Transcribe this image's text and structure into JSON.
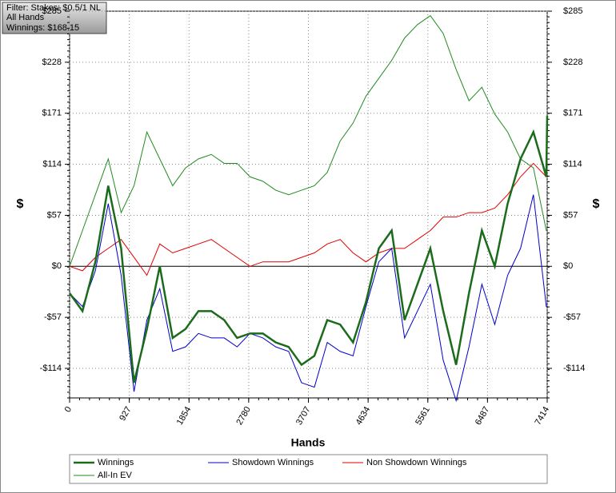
{
  "chart_data": {
    "type": "line",
    "info": [
      "Filter: Stakes: $0.5/1 NL",
      "All Hands",
      "Winnings: $168.15"
    ],
    "x_label": "Hands",
    "y_label": "$",
    "xlim": [
      0,
      7414
    ],
    "ylim": [
      -147,
      285
    ],
    "xticks": [
      0,
      927,
      1854,
      2780,
      3707,
      4634,
      5561,
      6487,
      7414
    ],
    "yticks": [
      {
        "value": -114,
        "label": "-$114"
      },
      {
        "value": -57,
        "label": "-$57"
      },
      {
        "value": 0,
        "label": "$0"
      },
      {
        "value": 57,
        "label": "$57"
      },
      {
        "value": 114,
        "label": "$114"
      },
      {
        "value": 171,
        "label": "$171"
      },
      {
        "value": 228,
        "label": "$228"
      },
      {
        "value": 285,
        "label": "$285"
      }
    ],
    "grid": true,
    "x": [
      0,
      200,
      400,
      600,
      800,
      1000,
      1200,
      1400,
      1600,
      1800,
      2000,
      2200,
      2400,
      2600,
      2800,
      3000,
      3200,
      3400,
      3600,
      3800,
      4000,
      4200,
      4400,
      4600,
      4800,
      5000,
      5200,
      5400,
      5600,
      5800,
      6000,
      6200,
      6400,
      6600,
      6800,
      7000,
      7200,
      7400,
      7414
    ],
    "series": [
      {
        "name": "Winnings",
        "color": "#1a6b1a",
        "width": 2.5,
        "values": [
          -30,
          -50,
          5,
          90,
          20,
          -130,
          -70,
          0,
          -80,
          -70,
          -50,
          -50,
          -60,
          -80,
          -75,
          -75,
          -85,
          -90,
          -110,
          -100,
          -60,
          -65,
          -85,
          -40,
          20,
          40,
          -60,
          -20,
          20,
          -50,
          -110,
          -30,
          40,
          0,
          70,
          120,
          150,
          100,
          168
        ]
      },
      {
        "name": "Showdown Winnings",
        "color": "#0000cc",
        "width": 1,
        "values": [
          -30,
          -45,
          -5,
          70,
          -10,
          -140,
          -60,
          -25,
          -95,
          -90,
          -75,
          -80,
          -80,
          -90,
          -75,
          -80,
          -90,
          -95,
          -130,
          -135,
          -85,
          -95,
          -100,
          -45,
          5,
          20,
          -80,
          -50,
          -20,
          -105,
          -150,
          -90,
          -20,
          -65,
          -10,
          20,
          80,
          -45,
          -45
        ]
      },
      {
        "name": "Non Showdown Winnings",
        "color": "#e00000",
        "width": 1,
        "values": [
          0,
          -5,
          10,
          20,
          30,
          10,
          -10,
          25,
          15,
          20,
          25,
          30,
          20,
          10,
          0,
          5,
          5,
          5,
          10,
          15,
          25,
          30,
          15,
          5,
          15,
          20,
          20,
          30,
          40,
          55,
          55,
          60,
          60,
          65,
          80,
          100,
          115,
          100,
          100
        ]
      },
      {
        "name": "All-In EV",
        "color": "#228b22",
        "width": 1,
        "values": [
          0,
          40,
          80,
          120,
          60,
          90,
          150,
          120,
          90,
          110,
          120,
          125,
          115,
          115,
          100,
          95,
          85,
          80,
          85,
          90,
          105,
          140,
          160,
          190,
          210,
          230,
          255,
          270,
          280,
          260,
          220,
          185,
          200,
          170,
          150,
          120,
          110,
          40,
          40
        ]
      }
    ]
  }
}
